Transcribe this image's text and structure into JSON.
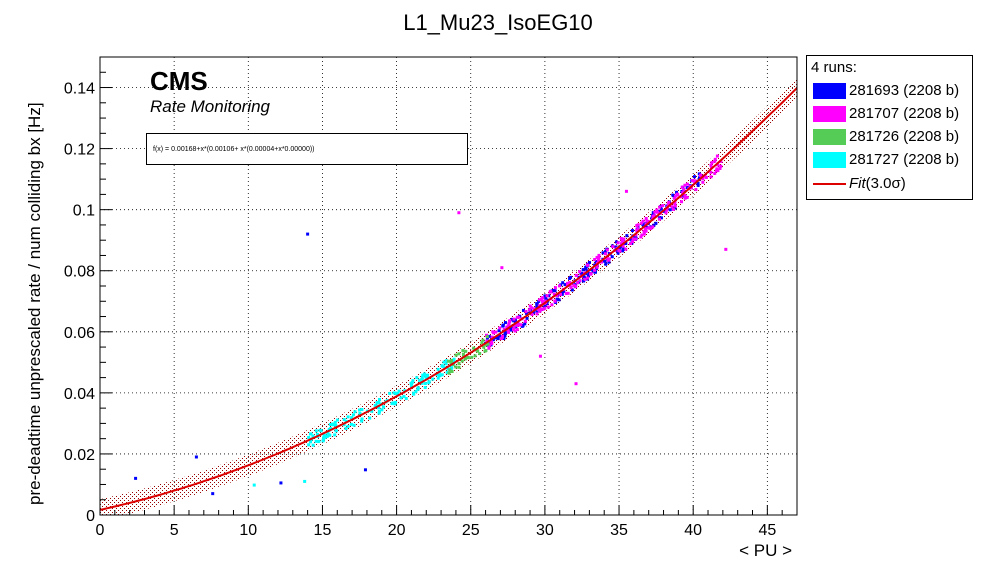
{
  "chart_data": {
    "type": "scatter",
    "title": "L1_Mu23_IsoEG10",
    "xlabel": "< PU >",
    "ylabel": "pre-deadtime unprescaled rate / num colliding bx [Hz]",
    "xlim": [
      0,
      47
    ],
    "ylim": [
      0,
      0.15
    ],
    "xticks": [
      0,
      5,
      10,
      15,
      20,
      25,
      30,
      35,
      40,
      45
    ],
    "yticks": [
      0,
      0.02,
      0.04,
      0.06,
      0.08,
      0.1,
      0.12,
      0.14
    ],
    "ytick_labels": [
      "0",
      "0.02",
      "0.04",
      "0.06",
      "0.08",
      "0.1",
      "0.12",
      "0.14"
    ],
    "grid": true,
    "legend_position": "right-outside",
    "legend_header": "4 runs:",
    "series": [
      {
        "name": "281693 (2208 b)",
        "color": "#0000ff",
        "x_range": [
          26,
          41
        ],
        "outliers": [
          [
            2.4,
            0.012
          ],
          [
            6.5,
            0.019
          ],
          [
            7.6,
            0.007
          ],
          [
            12.2,
            0.0105
          ],
          [
            14.0,
            0.092
          ],
          [
            17.9,
            0.0148
          ]
        ]
      },
      {
        "name": "281707 (2208 b)",
        "color": "#ff00ff",
        "x_range": [
          26,
          42
        ],
        "outliers": [
          [
            24.2,
            0.099
          ],
          [
            27.1,
            0.081
          ],
          [
            29.7,
            0.052
          ],
          [
            32.1,
            0.043
          ],
          [
            35.5,
            0.106
          ],
          [
            42.2,
            0.087
          ]
        ]
      },
      {
        "name": "281726 (2208 b)",
        "color": "#55cc55",
        "x_range": [
          23.5,
          26.2
        ],
        "outliers": []
      },
      {
        "name": "281727 (2208 b)",
        "color": "#00ffff",
        "x_range": [
          14,
          24
        ],
        "outliers": [
          [
            10.4,
            0.0098
          ],
          [
            13.8,
            0.011
          ]
        ]
      }
    ],
    "fit": {
      "name": "Fit(3.0σ)",
      "name_main": "Fit",
      "name_suffix": "(3.0σ)",
      "color": "#dd0000",
      "formula": "f(x) = 0.00168+x*(0.00106+ x*(0.00004+x*0.00000))",
      "coefficients": [
        0.00168,
        0.00106,
        4e-05,
        0.0
      ],
      "band_sigma": 3.0,
      "band_halfwidth": 0.0035,
      "x_range": [
        0,
        47
      ]
    }
  },
  "annotations": {
    "cms": "CMS",
    "subtitle": "Rate Monitoring"
  }
}
